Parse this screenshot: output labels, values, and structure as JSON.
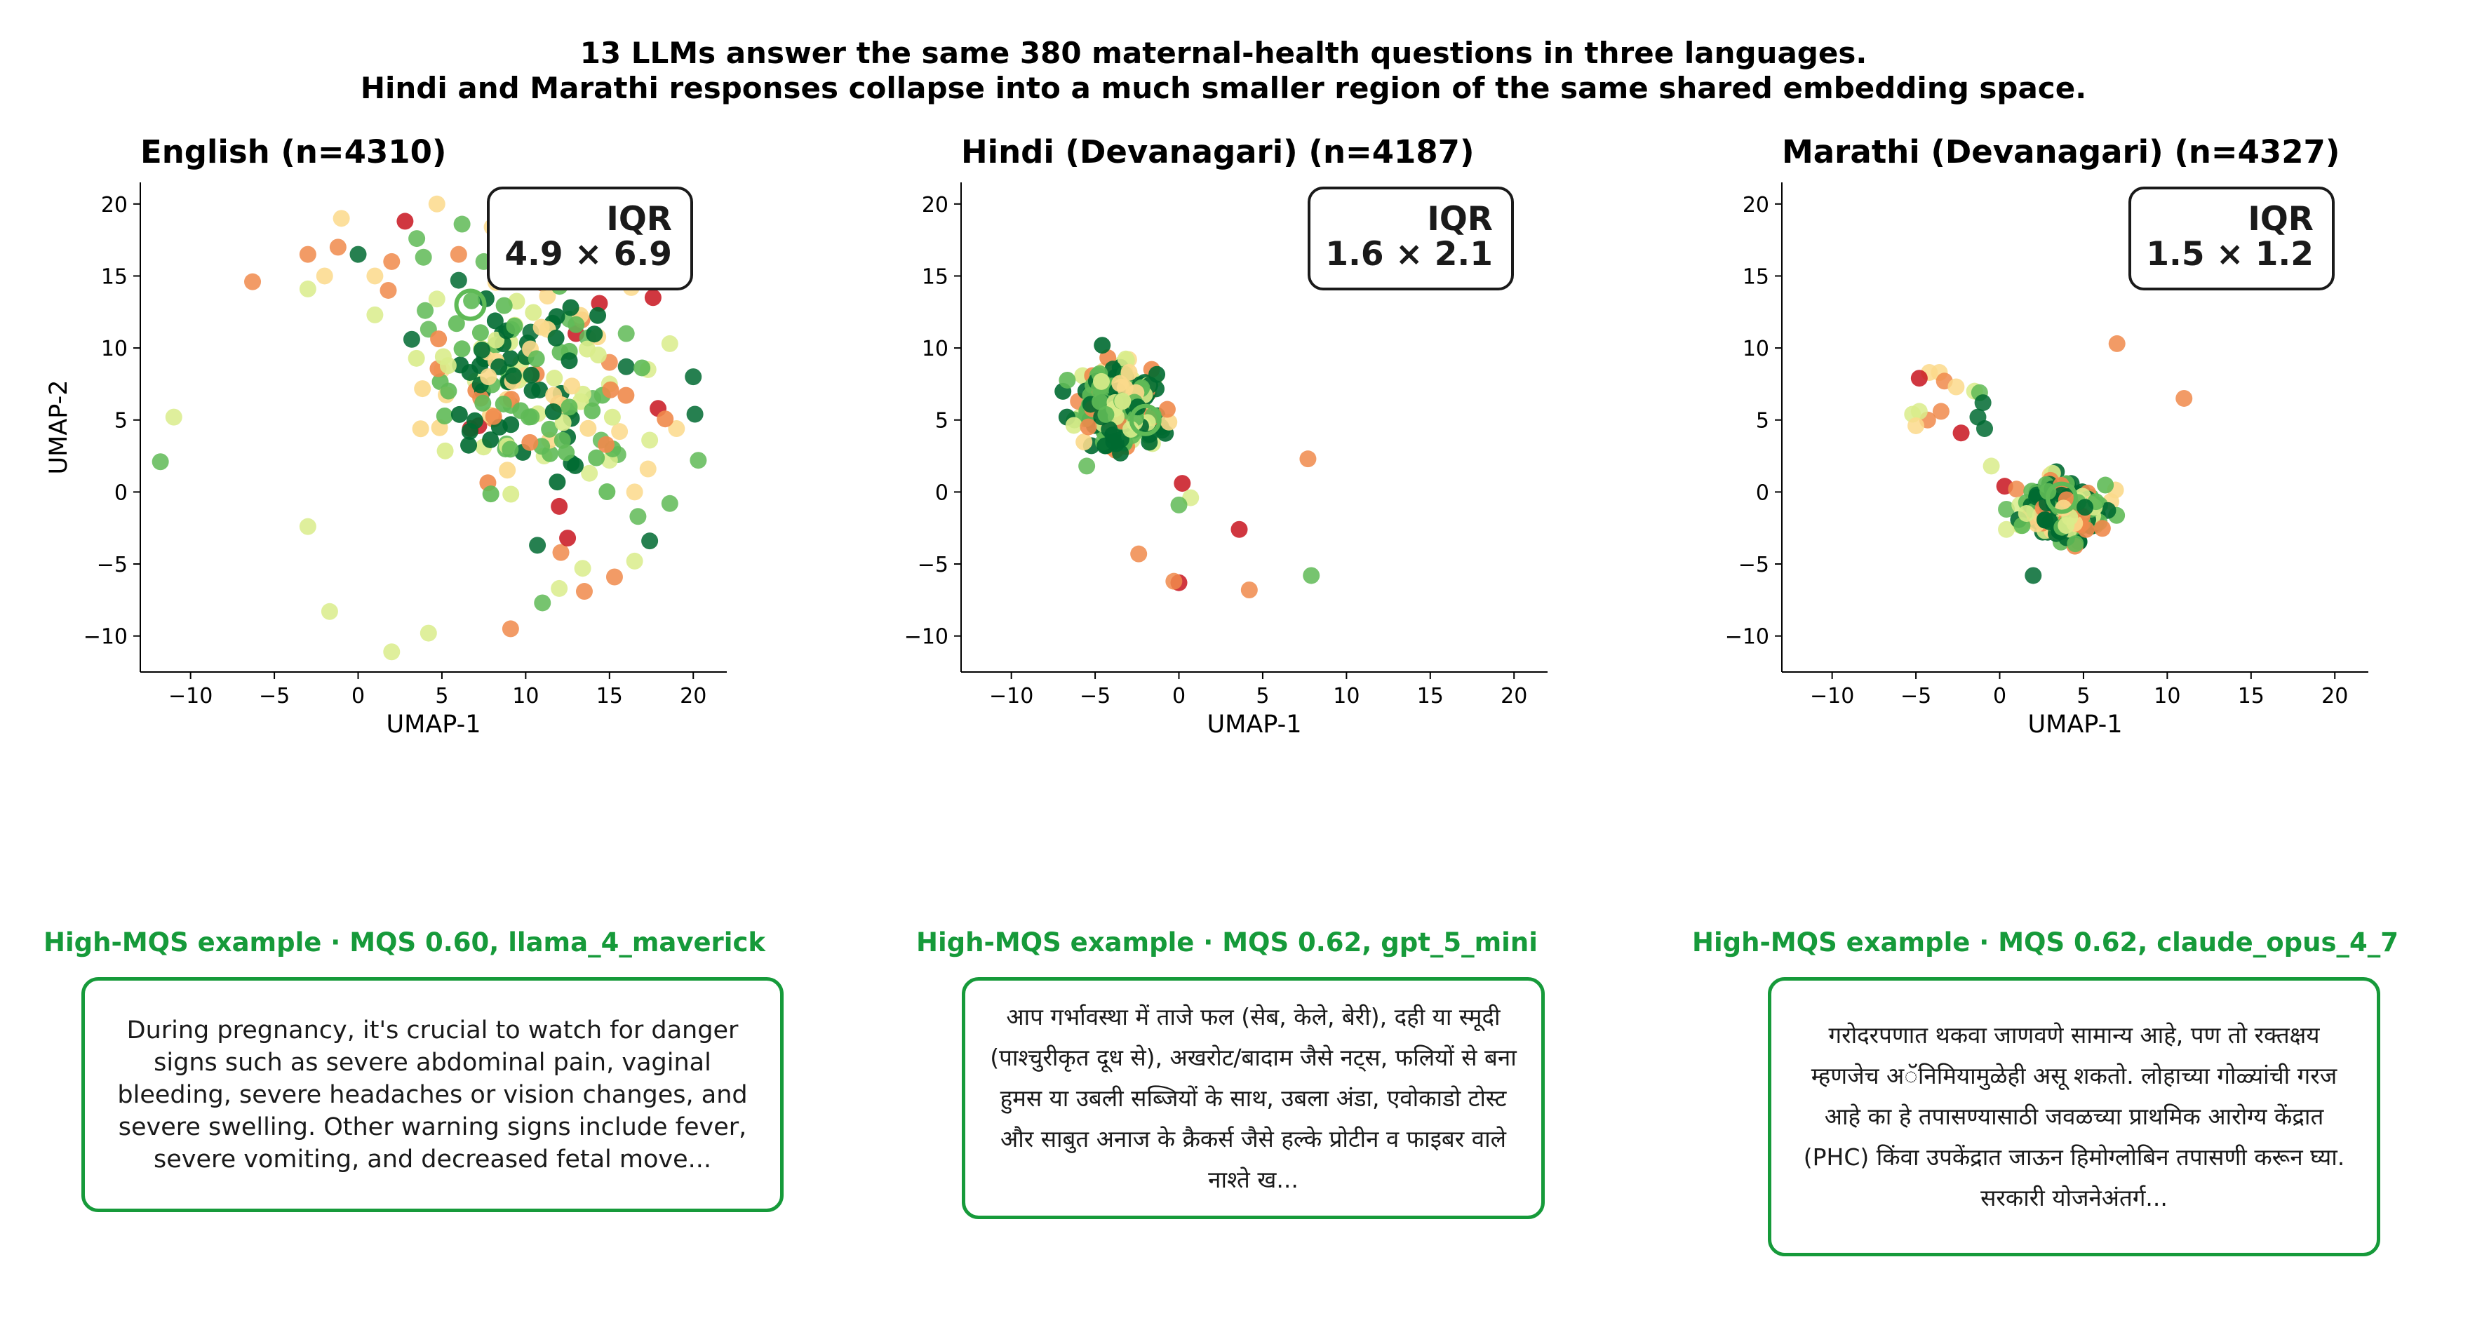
{
  "suptitle": {
    "line1": "13 LLMs answer the same 380 maternal-health questions in three languages.",
    "line2": "Hindi and Marathi responses collapse into a much smaller region of the same shared embedding space."
  },
  "colors": {
    "low": "#c8141e",
    "mid_low": "#f08a4b",
    "mid": "#fbd98b",
    "mid_high": "#d9ec8b",
    "high": "#5fba56",
    "top": "#006a31",
    "example_accent": "#169a3a"
  },
  "chart_data": [
    {
      "type": "scatter",
      "title": "English  (n=4310)",
      "xlabel": "UMAP-1",
      "ylabel": "UMAP-2",
      "xlim": [
        -13,
        22
      ],
      "ylim": [
        -12.5,
        21.5
      ],
      "xticks": [
        -10,
        -5,
        0,
        5,
        10,
        15,
        20
      ],
      "yticks": [
        -10,
        -5,
        0,
        5,
        10,
        15,
        20
      ],
      "grid": false,
      "annotation": {
        "line1": "IQR",
        "line2": "4.9 × 6.9",
        "placement": "top-right"
      },
      "centroid": [
        6.7,
        13
      ],
      "core": {
        "cx": 10,
        "cy": 8,
        "sx": 3,
        "sy": 4
      },
      "points": [
        [
          -1,
          19,
          "mid"
        ],
        [
          -3,
          16.5,
          "mid_low"
        ],
        [
          -1.2,
          17,
          "mid_low"
        ],
        [
          0,
          16.5,
          "top"
        ],
        [
          1,
          15,
          "mid"
        ],
        [
          -2,
          15,
          "mid"
        ],
        [
          2.8,
          18.8,
          "low"
        ],
        [
          2,
          16,
          "mid_low"
        ],
        [
          3.5,
          17.6,
          "high"
        ],
        [
          3.9,
          16.3,
          "high"
        ],
        [
          4.7,
          20,
          "mid"
        ],
        [
          6.2,
          18.6,
          "high"
        ],
        [
          8.6,
          17.5,
          "high"
        ],
        [
          8.8,
          19.6,
          "mid_high"
        ],
        [
          9.3,
          19.8,
          "mid"
        ],
        [
          6,
          16.5,
          "mid_low"
        ],
        [
          6,
          14.7,
          "top"
        ],
        [
          4.7,
          13.4,
          "mid_high"
        ],
        [
          4,
          12.6,
          "high"
        ],
        [
          1.8,
          14,
          "mid_low"
        ],
        [
          1,
          12.3,
          "mid_high"
        ],
        [
          -3,
          14.1,
          "mid_high"
        ],
        [
          -6.3,
          14.6,
          "mid_low"
        ],
        [
          3.2,
          10.6,
          "top"
        ],
        [
          4.2,
          11.3,
          "high"
        ],
        [
          5,
          8.5,
          "mid"
        ],
        [
          7,
          7.7,
          "mid_high"
        ],
        [
          6.7,
          4.4,
          "low"
        ],
        [
          7.2,
          4.6,
          "low"
        ],
        [
          -11,
          5.2,
          "mid_high"
        ],
        [
          -11.8,
          2.1,
          "high"
        ],
        [
          -3,
          -2.4,
          "mid_high"
        ],
        [
          -1.7,
          -8.3,
          "mid_high"
        ],
        [
          2,
          -11.1,
          "mid_high"
        ],
        [
          4.2,
          -9.8,
          "mid_high"
        ],
        [
          9.1,
          -9.5,
          "mid_low"
        ],
        [
          11,
          -7.7,
          "high"
        ],
        [
          12,
          -6.7,
          "mid_high"
        ],
        [
          10.7,
          -3.7,
          "top"
        ],
        [
          12.1,
          -4.2,
          "mid_low"
        ],
        [
          12.5,
          -3.2,
          "low"
        ],
        [
          12,
          -1,
          "low"
        ],
        [
          13.4,
          -5.3,
          "mid_high"
        ],
        [
          13.5,
          -6.9,
          "mid_low"
        ],
        [
          15.3,
          -5.9,
          "mid_low"
        ],
        [
          16.5,
          -4.8,
          "mid_high"
        ],
        [
          17.4,
          -3.4,
          "top"
        ],
        [
          16.7,
          -1.7,
          "high"
        ],
        [
          18.6,
          -0.8,
          "high"
        ],
        [
          16.5,
          0,
          "mid"
        ],
        [
          17.3,
          1.6,
          "mid"
        ],
        [
          13.8,
          1.3,
          "mid_high"
        ],
        [
          15.5,
          2.6,
          "high"
        ],
        [
          11.1,
          2.5,
          "mid_high"
        ],
        [
          20.3,
          2.2,
          "high"
        ],
        [
          19,
          4.4,
          "mid"
        ],
        [
          20.1,
          5.4,
          "top"
        ],
        [
          17.9,
          5.8,
          "low"
        ],
        [
          17.4,
          3.6,
          "mid_high"
        ],
        [
          20,
          8,
          "top"
        ],
        [
          18.6,
          10.3,
          "mid_high"
        ],
        [
          17.3,
          8.5,
          "mid_high"
        ],
        [
          17.6,
          13.5,
          "low"
        ],
        [
          16.3,
          14.2,
          "mid"
        ],
        [
          14.4,
          13.1,
          "low"
        ],
        [
          14.5,
          15,
          "mid"
        ],
        [
          12.7,
          16.7,
          "high"
        ],
        [
          11.6,
          19.5,
          "high"
        ],
        [
          8,
          18.4,
          "mid"
        ],
        [
          7.5,
          16,
          "high"
        ],
        [
          11,
          14.5,
          "mid_low"
        ],
        [
          11.3,
          13.6,
          "mid"
        ],
        [
          13.5,
          15.5,
          "high"
        ],
        [
          13,
          11,
          "low"
        ],
        [
          13.7,
          10.7,
          "high"
        ],
        [
          12.6,
          12,
          "high"
        ],
        [
          16,
          11,
          "high"
        ],
        [
          15,
          9,
          "mid_low"
        ],
        [
          15,
          7.5,
          "mid_high"
        ],
        [
          14,
          6.5,
          "high"
        ],
        [
          12.6,
          5.6,
          "high"
        ],
        [
          15.6,
          4.2,
          "mid"
        ],
        [
          14.5,
          3.6,
          "high"
        ],
        [
          15,
          2.2,
          "mid_high"
        ],
        [
          16,
          8.7,
          "top"
        ],
        [
          10.3,
          11.1,
          "top"
        ]
      ]
    },
    {
      "type": "scatter",
      "title": "Hindi (Devanagari)  (n=4187)",
      "xlabel": "UMAP-1",
      "xlim": [
        -13,
        22
      ],
      "ylim": [
        -12.5,
        21.5
      ],
      "xticks": [
        -10,
        -5,
        0,
        5,
        10,
        15,
        20
      ],
      "yticks": [
        -10,
        -5,
        0,
        5,
        10,
        15,
        20
      ],
      "grid": false,
      "annotation": {
        "line1": "IQR",
        "line2": "1.6 × 2.1",
        "placement": "top-right"
      },
      "centroid": [
        -2,
        5
      ],
      "core": {
        "cx": -3.5,
        "cy": 6,
        "sx": 1.1,
        "sy": 1.2
      },
      "points": [
        [
          -5.5,
          1.8,
          "high"
        ],
        [
          -3.5,
          3.4,
          "mid"
        ],
        [
          -4,
          3.1,
          "mid_low"
        ],
        [
          -2.8,
          3.6,
          "mid_high"
        ],
        [
          0.2,
          0.6,
          "low"
        ],
        [
          0.7,
          -0.4,
          "mid_high"
        ],
        [
          0,
          -0.9,
          "high"
        ],
        [
          3.6,
          -2.6,
          "low"
        ],
        [
          -2.4,
          -4.3,
          "mid_low"
        ],
        [
          0,
          -6.3,
          "low"
        ],
        [
          -0.3,
          -6.2,
          "mid_low"
        ],
        [
          4.2,
          -6.8,
          "mid_low"
        ],
        [
          7.9,
          -5.8,
          "high"
        ],
        [
          7.7,
          2.3,
          "mid_low"
        ],
        [
          -4.5,
          8.4,
          "mid"
        ],
        [
          -3,
          9.2,
          "mid"
        ],
        [
          -5.9,
          5.2,
          "mid_high"
        ],
        [
          -1,
          4.3,
          "top"
        ],
        [
          -1.3,
          5.3,
          "top"
        ],
        [
          -6,
          6.3,
          "mid_low"
        ],
        [
          -4.4,
          4.1,
          "top"
        ],
        [
          -1.5,
          7.8,
          "mid_high"
        ]
      ]
    },
    {
      "type": "scatter",
      "title": "Marathi (Devanagari)  (n=4327)",
      "xlabel": "UMAP-1",
      "xlim": [
        -13,
        22
      ],
      "ylim": [
        -12.5,
        21.5
      ],
      "xticks": [
        -10,
        -5,
        0,
        5,
        10,
        15,
        20
      ],
      "yticks": [
        -10,
        -5,
        0,
        5,
        10,
        15,
        20
      ],
      "grid": false,
      "annotation": {
        "line1": "IQR",
        "line2": "1.5 × 1.2",
        "placement": "top-right"
      },
      "centroid": [
        3.7,
        -0.4
      ],
      "core": {
        "cx": 3.8,
        "cy": -1.3,
        "sx": 1,
        "sy": 0.9
      },
      "points": [
        [
          -4.2,
          8.3,
          "mid"
        ],
        [
          -3.6,
          8.3,
          "mid"
        ],
        [
          -3.3,
          7.7,
          "mid_low"
        ],
        [
          -4.8,
          7.9,
          "low"
        ],
        [
          -2.6,
          7.3,
          "mid"
        ],
        [
          -1.5,
          7,
          "mid_high"
        ],
        [
          -1.2,
          6.9,
          "high"
        ],
        [
          -1,
          6.2,
          "top"
        ],
        [
          -1.3,
          5.2,
          "top"
        ],
        [
          -0.9,
          4.4,
          "top"
        ],
        [
          -2.3,
          4.1,
          "low"
        ],
        [
          -3.5,
          5.6,
          "mid_low"
        ],
        [
          -4.3,
          5,
          "mid_low"
        ],
        [
          -4.8,
          5.6,
          "mid_high"
        ],
        [
          -5.2,
          5.4,
          "mid_high"
        ],
        [
          -5,
          4.6,
          "mid"
        ],
        [
          -0.5,
          1.8,
          "mid_high"
        ],
        [
          0.3,
          0.4,
          "low"
        ],
        [
          1,
          0.2,
          "mid_low"
        ],
        [
          0.4,
          -1.2,
          "high"
        ],
        [
          0.4,
          -2.6,
          "mid_high"
        ],
        [
          2,
          -5.8,
          "top"
        ],
        [
          7,
          10.3,
          "mid_low"
        ],
        [
          11,
          6.5,
          "mid_low"
        ],
        [
          2,
          -0.6,
          "mid_low"
        ],
        [
          2.5,
          -0.3,
          "mid"
        ],
        [
          1.2,
          -0.9,
          "mid_high"
        ]
      ]
    }
  ],
  "examples": [
    {
      "caption": "High-MQS example  ·  MQS 0.60, llama_4_maverick",
      "text": "During pregnancy, it's crucial to watch for danger signs such as severe abdominal pain, vaginal bleeding, severe headaches or vision changes, and severe swelling. Other warning signs include fever, severe vomiting, and decreased fetal move..."
    },
    {
      "caption": "High-MQS example  ·  MQS 0.62, gpt_5_mini",
      "text": "आप गर्भावस्था में ताजे फल (सेब, केले, बेरी), दही या स्मूदी (पाश्चुरीकृत दूध से), अखरोट/बादाम जैसे नट्स, फलियों से बना हुमस या उबली सब्जियों के साथ, उबला अंडा, एवोकाडो टोस्ट और साबुत अनाज के क्रैकर्स जैसे हल्के प्रोटीन व फाइबर वाले नाश्ते ख..."
    },
    {
      "caption": "High-MQS example  ·  MQS 0.62, claude_opus_4_7",
      "text": "गरोदरपणात थकवा जाणवणे सामान्य आहे, पण तो रक्तक्षय म्हणजेच अॅनिमियामुळेही असू शकतो. लोहाच्या गोळ्यांची गरज आहे का हे तपासण्यासाठी जवळच्या प्राथमिक आरोग्य केंद्रात (PHC) किंवा उपकेंद्रात जाऊन हिमोग्लोबिन तपासणी करून घ्या. सरकारी योजनेअंतर्ग..."
    }
  ]
}
